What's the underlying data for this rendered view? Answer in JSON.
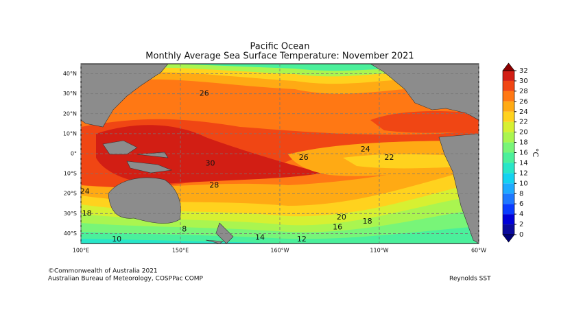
{
  "title": "Pacific Ocean",
  "subtitle": "Monthly Average Sea Surface Temperature: November 2021",
  "map": {
    "lonlim": [
      100,
      300
    ],
    "latlim": [
      -45,
      45
    ],
    "lonticks": [
      {
        "value": 100,
        "label": "100°E"
      },
      {
        "value": 150,
        "label": "150°E"
      },
      {
        "value": 200,
        "label": "160°W"
      },
      {
        "value": 250,
        "label": "110°W"
      },
      {
        "value": 300,
        "label": "60°W"
      }
    ],
    "latticks": [
      {
        "value": 40,
        "label": "40°N"
      },
      {
        "value": 30,
        "label": "30°N"
      },
      {
        "value": 20,
        "label": "20°N"
      },
      {
        "value": 10,
        "label": "10°N"
      },
      {
        "value": 0,
        "label": "0°"
      },
      {
        "value": -10,
        "label": "10°S"
      },
      {
        "value": -20,
        "label": "20°S"
      },
      {
        "value": -30,
        "label": "30°S"
      },
      {
        "value": -40,
        "label": "40°S"
      }
    ],
    "contour_labels": [
      {
        "lon": 162,
        "lat": 30,
        "value": 26
      },
      {
        "lon": 165,
        "lat": -5,
        "value": 30
      },
      {
        "lon": 167,
        "lat": -16,
        "value": 28
      },
      {
        "lon": 212,
        "lat": -2,
        "value": 26
      },
      {
        "lon": 243,
        "lat": 2,
        "value": 24
      },
      {
        "lon": 255,
        "lat": -2,
        "value": 22
      },
      {
        "lon": 231,
        "lat": -32,
        "value": 20
      },
      {
        "lon": 244,
        "lat": -34,
        "value": 18
      },
      {
        "lon": 229,
        "lat": -37,
        "value": 16
      },
      {
        "lon": 211,
        "lat": -43,
        "value": 12
      },
      {
        "lon": 118,
        "lat": -43,
        "value": 10
      },
      {
        "lon": 190,
        "lat": -42,
        "value": 14
      },
      {
        "lon": 152,
        "lat": -38,
        "value": 8
      },
      {
        "lon": 102,
        "lat": -19,
        "value": 24
      },
      {
        "lon": 103,
        "lat": -30,
        "value": 18
      }
    ]
  },
  "colorbar": {
    "label": "°C",
    "lim": [
      0,
      32
    ],
    "ticks": [
      0,
      2,
      4,
      6,
      8,
      10,
      12,
      14,
      16,
      18,
      20,
      22,
      24,
      26,
      28,
      30,
      32
    ],
    "colors": [
      "#0a0a9c",
      "#0000d8",
      "#0a3cff",
      "#1e78ff",
      "#1eaaff",
      "#14d2f0",
      "#28e6c8",
      "#4bf09b",
      "#78f578",
      "#aaf550",
      "#d7f032",
      "#ffd21e",
      "#ffaa14",
      "#ff7814",
      "#f04614",
      "#d21e14"
    ],
    "under": "#00007a",
    "over": "#8c0000"
  },
  "footer": {
    "copyright": "©Commonwealth of Australia 2021",
    "agency": "Australian Bureau of Meteorology, COSPPac COMP",
    "source": "Reynolds SST"
  }
}
